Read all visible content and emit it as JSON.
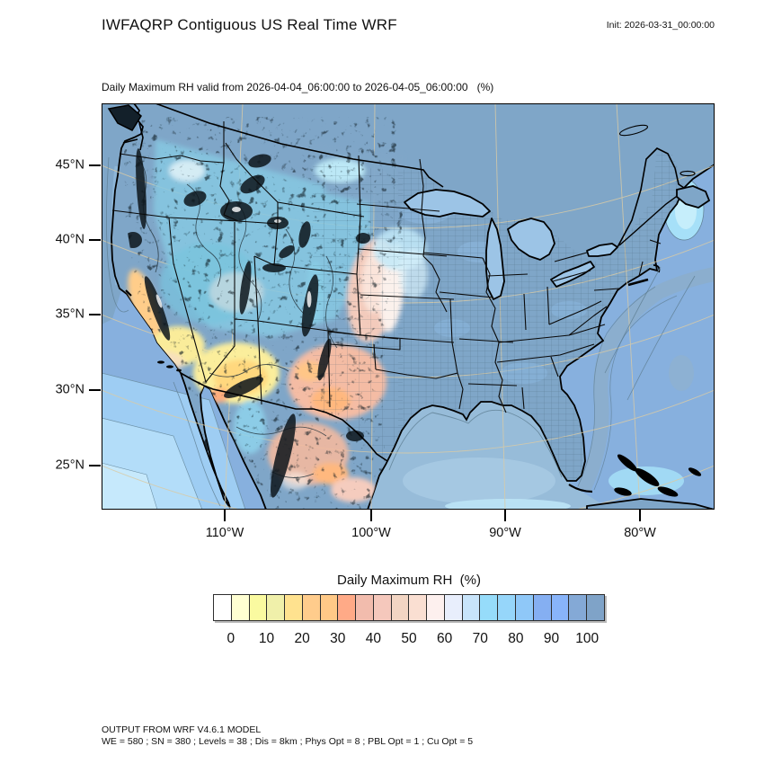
{
  "header": {
    "title": "IWFAQRP Contiguous US Real Time WRF",
    "init_label": "Init: 2026-03-31_00:00:00"
  },
  "subtitle": "Daily Maximum RH valid from 2026-04-04_06:00:00 to 2026-04-05_06:00:00   (%)",
  "map": {
    "y_axis": {
      "ticks": [
        "45°N",
        "40°N",
        "35°N",
        "30°N",
        "25°N"
      ]
    },
    "x_axis": {
      "ticks": [
        "110°W",
        "100°W",
        "90°W",
        "80°W"
      ]
    },
    "field": "Daily Maximum RH",
    "units": "%"
  },
  "colorbar": {
    "title": "Daily Maximum RH  (%)",
    "tick_labels": [
      "0",
      "10",
      "20",
      "30",
      "40",
      "50",
      "60",
      "70",
      "80",
      "90",
      "100"
    ],
    "cell_colors": [
      "#FFFFFF",
      "#FFFFD2",
      "#FAFAA0",
      "#F0F0AA",
      "#FFE28F",
      "#FFCC8C",
      "#FFC987",
      "#FFAA87",
      "#F2BCAD",
      "#F5C8BC",
      "#F2D5C3",
      "#FADFD2",
      "#FDF0EE",
      "#E8EEFC",
      "#C8E4FA",
      "#96DCFA",
      "#96D6FA",
      "#8FC8F8",
      "#85AFF2",
      "#88B4FA",
      "#84A9D6",
      "#7FA3C8"
    ]
  },
  "footer": {
    "line1": "OUTPUT FROM WRF V4.6.1 MODEL",
    "line2": "WE = 580 ; SN = 380 ; Levels = 38 ; Dis = 8km ; Phys Opt = 8 ; PBL Opt = 1 ; Cu Opt = 5"
  }
}
